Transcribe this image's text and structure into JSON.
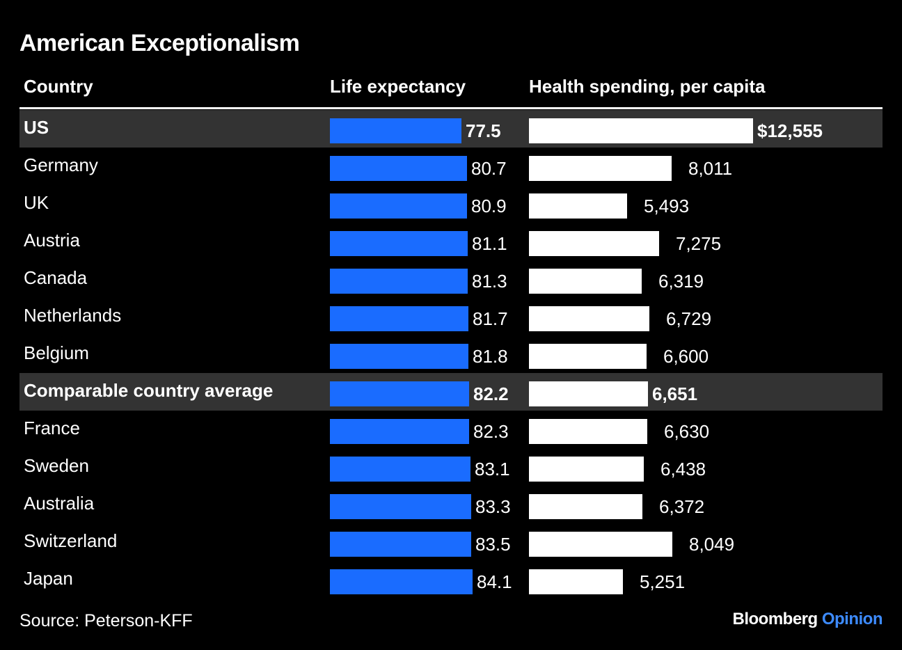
{
  "title": "American Exceptionalism",
  "headers": {
    "country": "Country",
    "life": "Life expectancy",
    "spend": "Health spending, per capita"
  },
  "source": "Source: Peterson-KFF",
  "brand": {
    "name": "Bloomberg",
    "section": "Opinion"
  },
  "colors": {
    "background": "#000000",
    "life_bar": "#1a6cff",
    "spend_bar": "#ffffff",
    "highlight_row": "#333333",
    "brand_accent": "#3d8bff"
  },
  "chart_data": {
    "type": "table",
    "title": "American Exceptionalism",
    "columns": [
      "Country",
      "Life expectancy",
      "Health spending, per capita"
    ],
    "life_expectancy_bar_scale": [
      0,
      85
    ],
    "spending_bar_scale": [
      0,
      12555
    ],
    "rows": [
      {
        "country": "US",
        "life": 77.5,
        "life_label": "77.5",
        "spend": 12555,
        "spend_label": "$12,555",
        "highlight": true,
        "bold": true
      },
      {
        "country": "Germany",
        "life": 80.7,
        "life_label": "80.7",
        "spend": 8011,
        "spend_label": "8,011"
      },
      {
        "country": "UK",
        "life": 80.9,
        "life_label": "80.9",
        "spend": 5493,
        "spend_label": "5,493"
      },
      {
        "country": "Austria",
        "life": 81.1,
        "life_label": "81.1",
        "spend": 7275,
        "spend_label": "7,275"
      },
      {
        "country": "Canada",
        "life": 81.3,
        "life_label": "81.3",
        "spend": 6319,
        "spend_label": "6,319"
      },
      {
        "country": "Netherlands",
        "life": 81.7,
        "life_label": "81.7",
        "spend": 6729,
        "spend_label": "6,729"
      },
      {
        "country": "Belgium",
        "life": 81.8,
        "life_label": "81.8",
        "spend": 6600,
        "spend_label": "6,600"
      },
      {
        "country": "Comparable country average",
        "life": 82.2,
        "life_label": "82.2",
        "spend": 6651,
        "spend_label": "6,651",
        "highlight": true,
        "bold": true
      },
      {
        "country": "France",
        "life": 82.3,
        "life_label": "82.3",
        "spend": 6630,
        "spend_label": "6,630"
      },
      {
        "country": "Sweden",
        "life": 83.1,
        "life_label": "83.1",
        "spend": 6438,
        "spend_label": "6,438"
      },
      {
        "country": "Australia",
        "life": 83.3,
        "life_label": "83.3",
        "spend": 6372,
        "spend_label": "6,372"
      },
      {
        "country": "Switzerland",
        "life": 83.5,
        "life_label": "83.5",
        "spend": 8049,
        "spend_label": "8,049"
      },
      {
        "country": "Japan",
        "life": 84.1,
        "life_label": "84.1",
        "spend": 5251,
        "spend_label": "5,251"
      }
    ]
  }
}
